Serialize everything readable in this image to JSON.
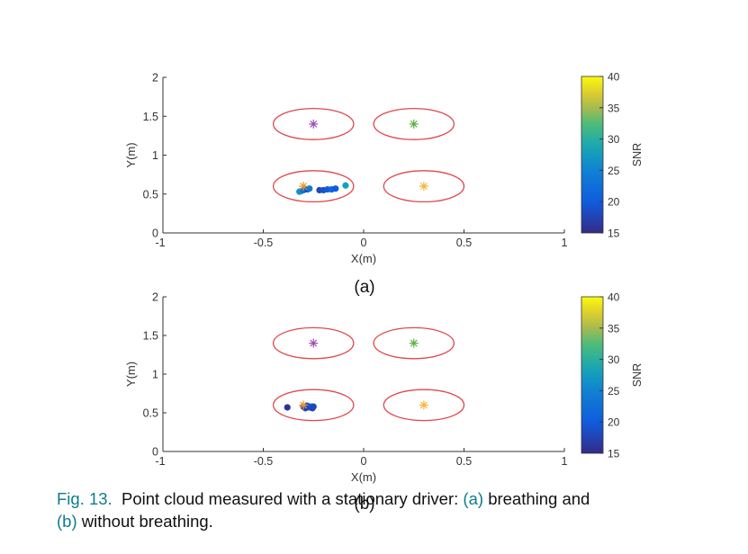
{
  "chart_data": [
    {
      "type": "scatter",
      "panel_label": "(a)",
      "xlabel": "X(m)",
      "ylabel": "Y(m)",
      "xlim": [
        -1,
        1
      ],
      "ylim": [
        0,
        2
      ],
      "xticks": [
        -1,
        -0.5,
        0,
        0.5,
        1
      ],
      "xtick_labels": [
        "-1",
        "-0.5",
        "0",
        "0.5",
        "1"
      ],
      "yticks": [
        0,
        0.5,
        1,
        1.5,
        2
      ],
      "ytick_labels": [
        "0",
        "0.5",
        "1",
        "1.5",
        "2"
      ],
      "grid": false,
      "colorbar": {
        "label": "SNR",
        "range": [
          15,
          40
        ],
        "ticks": [
          15,
          20,
          25,
          30,
          35,
          40
        ],
        "tick_labels": [
          "15",
          "20",
          "25",
          "30",
          "35",
          "40"
        ]
      },
      "markers": [
        {
          "x": -0.25,
          "y": 1.4,
          "color": "#9d4db5"
        },
        {
          "x": 0.25,
          "y": 1.4,
          "color": "#5fae46"
        },
        {
          "x": -0.3,
          "y": 0.6,
          "color": "#e69a2e"
        },
        {
          "x": 0.3,
          "y": 0.6,
          "color": "#f0b63a"
        }
      ],
      "ellipses": [
        {
          "cx": -0.25,
          "cy": 1.4,
          "rx": 0.2,
          "ry": 0.2
        },
        {
          "cx": 0.25,
          "cy": 1.4,
          "rx": 0.2,
          "ry": 0.2
        },
        {
          "cx": -0.25,
          "cy": 0.6,
          "rx": 0.2,
          "ry": 0.2
        },
        {
          "cx": 0.3,
          "cy": 0.6,
          "rx": 0.2,
          "ry": 0.2
        }
      ],
      "points": [
        {
          "x": -0.32,
          "y": 0.53,
          "snr": 27
        },
        {
          "x": -0.31,
          "y": 0.54,
          "snr": 26
        },
        {
          "x": -0.3,
          "y": 0.55,
          "snr": 23
        },
        {
          "x": -0.29,
          "y": 0.56,
          "snr": 21
        },
        {
          "x": -0.28,
          "y": 0.56,
          "snr": 19
        },
        {
          "x": -0.27,
          "y": 0.57,
          "snr": 24
        },
        {
          "x": -0.22,
          "y": 0.55,
          "snr": 18
        },
        {
          "x": -0.2,
          "y": 0.55,
          "snr": 19
        },
        {
          "x": -0.18,
          "y": 0.56,
          "snr": 20
        },
        {
          "x": -0.16,
          "y": 0.56,
          "snr": 21
        },
        {
          "x": -0.14,
          "y": 0.57,
          "snr": 20
        },
        {
          "x": -0.09,
          "y": 0.61,
          "snr": 28
        }
      ]
    },
    {
      "type": "scatter",
      "panel_label": "(b)",
      "xlabel": "X(m)",
      "ylabel": "Y(m)",
      "xlim": [
        -1,
        1
      ],
      "ylim": [
        0,
        2
      ],
      "xticks": [
        -1,
        -0.5,
        0,
        0.5,
        1
      ],
      "xtick_labels": [
        "-1",
        "-0.5",
        "0",
        "0.5",
        "1"
      ],
      "yticks": [
        0,
        0.5,
        1,
        1.5,
        2
      ],
      "ytick_labels": [
        "0",
        "0.5",
        "1",
        "1.5",
        "2"
      ],
      "grid": false,
      "colorbar": {
        "label": "SNR",
        "range": [
          15,
          40
        ],
        "ticks": [
          15,
          20,
          25,
          30,
          35,
          40
        ],
        "tick_labels": [
          "15",
          "20",
          "25",
          "30",
          "35",
          "40"
        ]
      },
      "markers": [
        {
          "x": -0.25,
          "y": 1.4,
          "color": "#9d4db5"
        },
        {
          "x": 0.25,
          "y": 1.4,
          "color": "#5fae46"
        },
        {
          "x": -0.3,
          "y": 0.6,
          "color": "#e69a2e"
        },
        {
          "x": 0.3,
          "y": 0.6,
          "color": "#f0b63a"
        }
      ],
      "ellipses": [
        {
          "cx": -0.25,
          "cy": 1.4,
          "rx": 0.2,
          "ry": 0.2
        },
        {
          "cx": 0.25,
          "cy": 1.4,
          "rx": 0.2,
          "ry": 0.2
        },
        {
          "cx": -0.25,
          "cy": 0.6,
          "rx": 0.2,
          "ry": 0.2
        },
        {
          "cx": 0.3,
          "cy": 0.6,
          "rx": 0.2,
          "ry": 0.2
        }
      ],
      "points": [
        {
          "x": -0.38,
          "y": 0.57,
          "snr": 16
        },
        {
          "x": -0.3,
          "y": 0.58,
          "snr": 18
        },
        {
          "x": -0.29,
          "y": 0.56,
          "snr": 17
        },
        {
          "x": -0.28,
          "y": 0.59,
          "snr": 19
        },
        {
          "x": -0.27,
          "y": 0.57,
          "snr": 18
        },
        {
          "x": -0.26,
          "y": 0.58,
          "snr": 20
        },
        {
          "x": -0.255,
          "y": 0.56,
          "snr": 17
        },
        {
          "x": -0.25,
          "y": 0.58,
          "snr": 18
        }
      ]
    }
  ],
  "caption": {
    "fig_label": "Fig. 13.",
    "text_1": "Point cloud measured with a stationary driver:",
    "sub_a": "(a)",
    "text_2": "breathing and",
    "sub_b": "(b)",
    "text_3": "without breathing."
  },
  "colors": {
    "ellipse": "#e0474c",
    "axis": "#333333",
    "caption_accent": "#0d7d8c"
  }
}
